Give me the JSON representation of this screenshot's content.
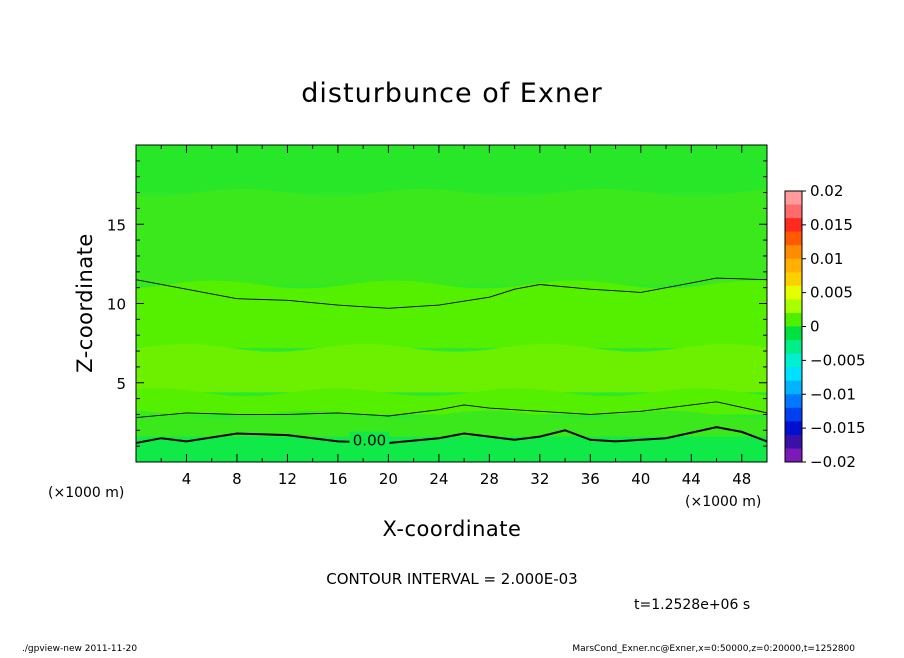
{
  "chart_data": {
    "type": "contour",
    "title": "disturbunce of Exner",
    "xlabel": "X-coordinate",
    "ylabel": "Z-coordinate",
    "x_unit": "(×1000 m)",
    "y_unit": "(×1000 m)",
    "xlim": [
      0,
      50
    ],
    "ylim": [
      0,
      20
    ],
    "x_ticks": [
      4,
      8,
      12,
      16,
      20,
      24,
      28,
      32,
      36,
      40,
      44,
      48
    ],
    "y_ticks": [
      5,
      10,
      15
    ],
    "contour_interval_text": "CONTOUR INTERVAL = 2.000E-03",
    "contour_label": "0.00",
    "time_text": "t=1.2528e+06 s",
    "colorbar": {
      "ticks": [
        "0.02",
        "0.015",
        "0.01",
        "0.005",
        "0",
        "−0.005",
        "−0.01",
        "−0.015",
        "−0.02"
      ],
      "range": [
        -0.02,
        0.02
      ],
      "colors": [
        "#ff9b9b",
        "#ff6b6b",
        "#ff2a1f",
        "#ff5a00",
        "#ff8c00",
        "#ffb000",
        "#ffd000",
        "#e6ff00",
        "#a8ff00",
        "#4ef000",
        "#00e040",
        "#00ee88",
        "#00f0d0",
        "#00e0ff",
        "#00b4ff",
        "#0078ff",
        "#0040f0",
        "#0010d0",
        "#3a10a8",
        "#7a1ab8"
      ]
    },
    "contours": [
      {
        "level": 0.002,
        "points": [
          [
            0,
            11.5
          ],
          [
            4,
            10.9
          ],
          [
            8,
            10.3
          ],
          [
            12,
            10.2
          ],
          [
            16,
            9.9
          ],
          [
            20,
            9.7
          ],
          [
            24,
            9.9
          ],
          [
            28,
            10.4
          ],
          [
            30,
            10.9
          ],
          [
            32,
            11.2
          ],
          [
            36,
            10.9
          ],
          [
            40,
            10.7
          ],
          [
            44,
            11.3
          ],
          [
            46,
            11.6
          ],
          [
            50,
            11.5
          ]
        ]
      },
      {
        "level": 0.002,
        "points": [
          [
            0,
            2.8
          ],
          [
            4,
            3.1
          ],
          [
            8,
            3.0
          ],
          [
            12,
            3.0
          ],
          [
            16,
            3.1
          ],
          [
            20,
            2.9
          ],
          [
            24,
            3.3
          ],
          [
            26,
            3.6
          ],
          [
            28,
            3.4
          ],
          [
            32,
            3.2
          ],
          [
            36,
            3.0
          ],
          [
            40,
            3.2
          ],
          [
            44,
            3.6
          ],
          [
            46,
            3.8
          ],
          [
            50,
            3.1
          ]
        ]
      },
      {
        "level": 0,
        "points": [
          [
            0,
            1.2
          ],
          [
            2,
            1.5
          ],
          [
            4,
            1.3
          ],
          [
            8,
            1.8
          ],
          [
            12,
            1.7
          ],
          [
            16,
            1.3
          ],
          [
            20,
            1.2
          ],
          [
            24,
            1.5
          ],
          [
            26,
            1.8
          ],
          [
            28,
            1.6
          ],
          [
            30,
            1.4
          ],
          [
            32,
            1.6
          ],
          [
            34,
            2.0
          ],
          [
            36,
            1.4
          ],
          [
            38,
            1.3
          ],
          [
            42,
            1.5
          ],
          [
            46,
            2.2
          ],
          [
            48,
            1.9
          ],
          [
            50,
            1.3
          ]
        ]
      }
    ],
    "fill_bands": [
      {
        "color": "#28e628",
        "y": [
          17.0,
          20.0
        ]
      },
      {
        "color": "#3ae81c",
        "y": [
          11.2,
          17.0
        ]
      },
      {
        "color": "#55f000",
        "y": [
          7.2,
          11.2
        ]
      },
      {
        "color": "#6cf000",
        "y": [
          4.4,
          7.2
        ]
      },
      {
        "color": "#55f000",
        "y": [
          3.0,
          4.4
        ]
      },
      {
        "color": "#3ae81c",
        "y": [
          1.6,
          3.0
        ]
      },
      {
        "color": "#10ea48",
        "y": [
          0.0,
          1.6
        ]
      }
    ]
  },
  "footer": {
    "left": "./gpview-new   2011-11-20",
    "right": "MarsCond_Exner.nc@Exner,x=0:50000,z=0:20000,t=1252800"
  }
}
